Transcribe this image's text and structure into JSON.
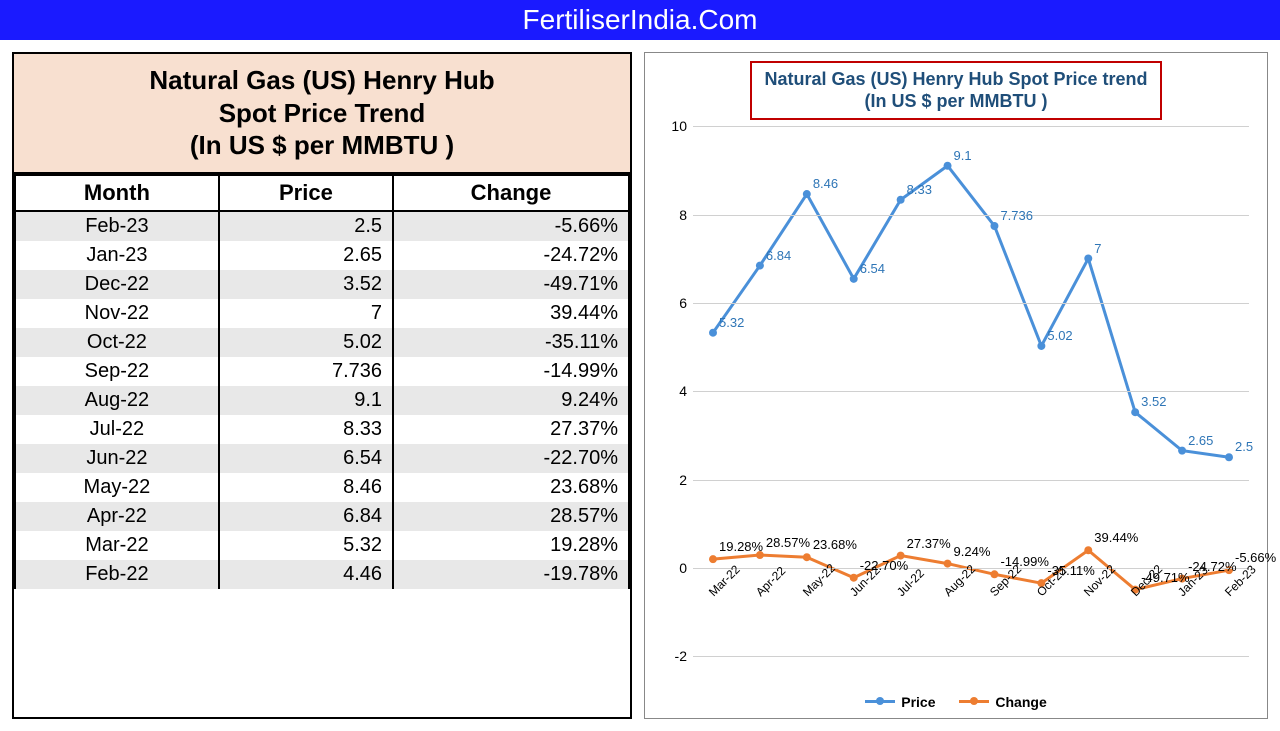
{
  "header": {
    "title": "FertiliserIndia.Com"
  },
  "table": {
    "title": "Natural Gas (US) Henry Hub<br>Spot Price Trend<br>(In US $ per MMBTU )",
    "columns": [
      "Month",
      "Price",
      "Change"
    ],
    "rows": [
      {
        "month": "Feb-23",
        "price": "2.5",
        "change": "-5.66%"
      },
      {
        "month": "Jan-23",
        "price": "2.65",
        "change": "-24.72%"
      },
      {
        "month": "Dec-22",
        "price": "3.52",
        "change": "-49.71%"
      },
      {
        "month": "Nov-22",
        "price": "7",
        "change": "39.44%"
      },
      {
        "month": "Oct-22",
        "price": "5.02",
        "change": "-35.11%"
      },
      {
        "month": "Sep-22",
        "price": "7.736",
        "change": "-14.99%"
      },
      {
        "month": "Aug-22",
        "price": "9.1",
        "change": "9.24%"
      },
      {
        "month": "Jul-22",
        "price": "8.33",
        "change": "27.37%"
      },
      {
        "month": "Jun-22",
        "price": "6.54",
        "change": "-22.70%"
      },
      {
        "month": "May-22",
        "price": "8.46",
        "change": "23.68%"
      },
      {
        "month": "Apr-22",
        "price": "6.84",
        "change": "28.57%"
      },
      {
        "month": "Mar-22",
        "price": "5.32",
        "change": "19.28%"
      },
      {
        "month": "Feb-22",
        "price": "4.46",
        "change": "-19.78%"
      }
    ]
  },
  "chart": {
    "title": "Natural Gas (US) Henry Hub Spot Price trend<br>(In US $ per MMBTU )",
    "type": "line",
    "ylim": [
      -2,
      10
    ],
    "yticks": [
      -2,
      0,
      2,
      4,
      6,
      8,
      10
    ],
    "categories": [
      "Mar-22",
      "Apr-22",
      "May-22",
      "Jun-22",
      "Jul-22",
      "Aug-22",
      "Sep-22",
      "Oct-22",
      "Nov-22",
      "Dec-22",
      "Jan-23",
      "Feb-23"
    ],
    "series": {
      "price": {
        "label": "Price",
        "color": "#4a90d9",
        "values": [
          5.32,
          6.84,
          8.46,
          6.54,
          8.33,
          9.1,
          7.736,
          5.02,
          7,
          3.52,
          2.65,
          2.5
        ],
        "value_labels": [
          "5.32",
          "6.84",
          "8.46",
          "6.54",
          "8.33",
          "9.1",
          "7.736",
          "5.02",
          "7",
          "3.52",
          "2.65",
          "2.5"
        ]
      },
      "change": {
        "label": "Change",
        "color": "#ed7d31",
        "values": [
          0.1928,
          0.2857,
          0.2368,
          -0.227,
          0.2737,
          0.0924,
          -0.1499,
          -0.3511,
          0.3944,
          -0.4971,
          -0.2472,
          -0.0566
        ],
        "value_labels": [
          "19.28%",
          "28.57%",
          "23.68%",
          "-22.70%",
          "27.37%",
          "9.24%",
          "-14.99%",
          "-35.11%",
          "39.44%",
          "-49.71%",
          "-24.72%",
          "-5.66%"
        ]
      }
    },
    "grid_color": "#d0d0d0",
    "background_color": "#ffffff",
    "line_width": 3,
    "marker_size": 6
  }
}
